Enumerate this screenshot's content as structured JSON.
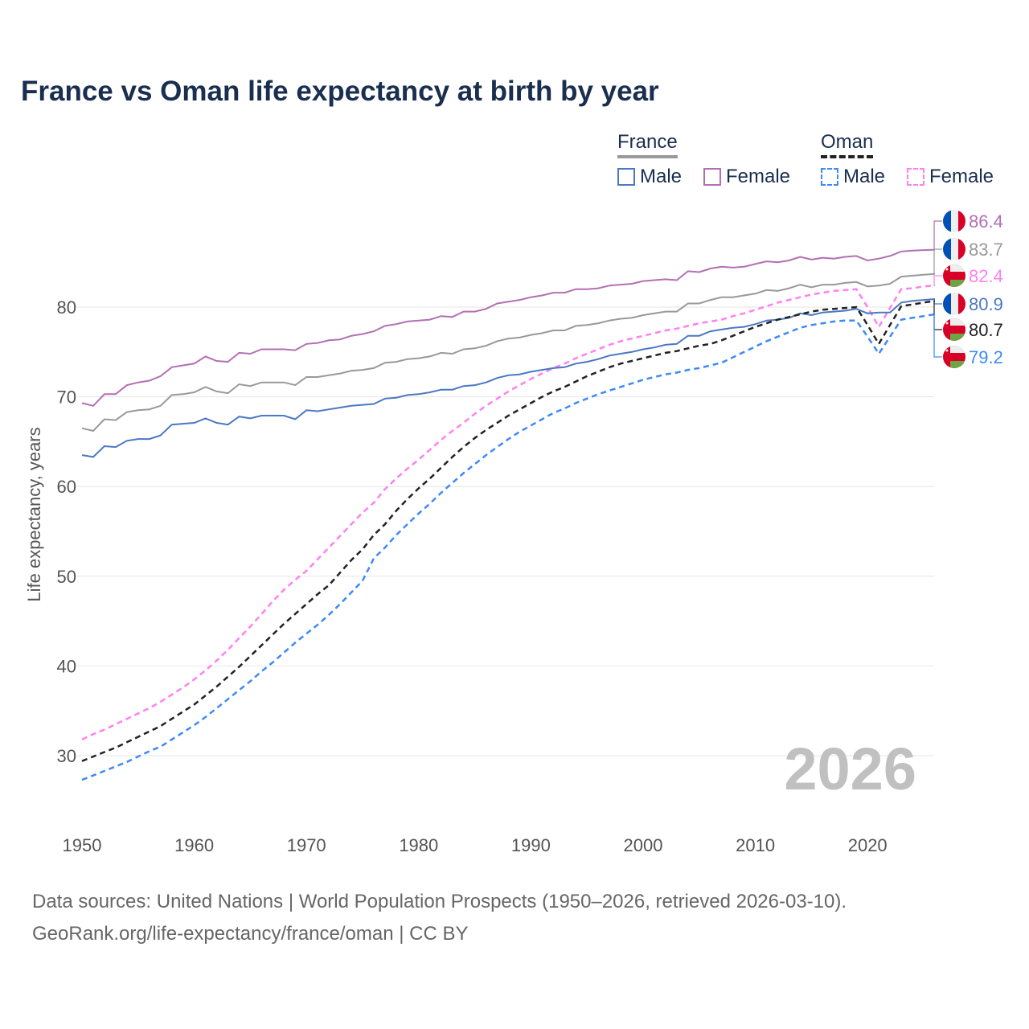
{
  "title": "France vs Oman life expectancy at birth by year",
  "footer": {
    "line1": "Data sources: United Nations | World Population Prospects (1950–2026, retrieved 2026-03-10).",
    "line2": "GeoRank.org/life-expectancy/france/oman | CC BY"
  },
  "legend": {
    "groups": [
      {
        "title": "France",
        "items": [
          "Male",
          "Female"
        ]
      },
      {
        "title": "Oman",
        "items": [
          "Male",
          "Female"
        ]
      }
    ]
  },
  "year_watermark": "2026",
  "chart_data": {
    "type": "line",
    "title": "France vs Oman life expectancy at birth by year",
    "xlabel": "",
    "ylabel": "Life expectancy, years",
    "xlim": [
      1950,
      2026
    ],
    "ylim": [
      24,
      90
    ],
    "x_ticks": [
      1950,
      1960,
      1970,
      1980,
      1990,
      2000,
      2010,
      2020
    ],
    "y_ticks": [
      30,
      40,
      50,
      60,
      70,
      80
    ],
    "grid": true,
    "x_start": 1950,
    "series": [
      {
        "name": "France Female",
        "country": "France",
        "flag": "france",
        "color": "#b36fb3",
        "dashed": false,
        "end_label": "86.4",
        "values": [
          69.3,
          69.0,
          70.3,
          70.3,
          71.3,
          71.6,
          71.8,
          72.3,
          73.3,
          73.5,
          73.7,
          74.5,
          74.0,
          73.9,
          74.9,
          74.8,
          75.3,
          75.3,
          75.3,
          75.2,
          75.9,
          76.0,
          76.3,
          76.4,
          76.8,
          77.0,
          77.3,
          77.9,
          78.1,
          78.4,
          78.5,
          78.6,
          79.0,
          78.9,
          79.5,
          79.5,
          79.8,
          80.4,
          80.6,
          80.8,
          81.1,
          81.3,
          81.6,
          81.6,
          82.0,
          82.0,
          82.1,
          82.4,
          82.5,
          82.6,
          82.9,
          83.0,
          83.1,
          83.0,
          84.0,
          83.9,
          84.3,
          84.5,
          84.4,
          84.5,
          84.8,
          85.1,
          85.0,
          85.2,
          85.6,
          85.3,
          85.5,
          85.4,
          85.6,
          85.7,
          85.2,
          85.4,
          85.7,
          86.2,
          86.3,
          86.35,
          86.4
        ]
      },
      {
        "name": "France Total",
        "country": "France",
        "flag": "france",
        "color": "#999999",
        "dashed": false,
        "end_label": "83.7",
        "values": [
          66.5,
          66.2,
          67.5,
          67.4,
          68.3,
          68.5,
          68.6,
          69.0,
          70.2,
          70.3,
          70.5,
          71.1,
          70.6,
          70.4,
          71.4,
          71.2,
          71.6,
          71.6,
          71.6,
          71.3,
          72.2,
          72.2,
          72.4,
          72.6,
          72.9,
          73.0,
          73.2,
          73.8,
          73.9,
          74.2,
          74.3,
          74.5,
          74.9,
          74.8,
          75.3,
          75.4,
          75.7,
          76.2,
          76.5,
          76.6,
          76.9,
          77.1,
          77.4,
          77.4,
          77.9,
          78.0,
          78.2,
          78.5,
          78.7,
          78.8,
          79.1,
          79.3,
          79.5,
          79.5,
          80.4,
          80.4,
          80.8,
          81.1,
          81.1,
          81.3,
          81.5,
          81.9,
          81.8,
          82.1,
          82.5,
          82.2,
          82.5,
          82.5,
          82.7,
          82.8,
          82.3,
          82.4,
          82.6,
          83.4,
          83.5,
          83.6,
          83.7
        ]
      },
      {
        "name": "Oman Female",
        "country": "Oman",
        "flag": "oman",
        "color": "#ff80f0",
        "dashed": true,
        "end_label": "82.4",
        "values": [
          31.8,
          32.4,
          32.9,
          33.5,
          34.1,
          34.7,
          35.3,
          36.0,
          36.8,
          37.6,
          38.5,
          39.5,
          40.6,
          41.8,
          43.1,
          44.4,
          45.8,
          47.2,
          48.5,
          49.6,
          50.6,
          51.9,
          53.2,
          54.5,
          55.8,
          57.1,
          58.2,
          59.7,
          60.9,
          62.0,
          63.0,
          64.1,
          65.2,
          66.2,
          67.1,
          68.1,
          69.0,
          69.8,
          70.6,
          71.3,
          72.0,
          72.6,
          73.2,
          73.7,
          74.3,
          74.8,
          75.3,
          75.8,
          76.2,
          76.5,
          76.8,
          77.1,
          77.4,
          77.6,
          77.9,
          78.2,
          78.4,
          78.6,
          79.0,
          79.3,
          79.7,
          80.1,
          80.5,
          80.8,
          81.1,
          81.4,
          81.6,
          81.8,
          81.9,
          82.0,
          80.0,
          77.8,
          79.9,
          82.0,
          82.1,
          82.3,
          82.4
        ]
      },
      {
        "name": "France Male",
        "country": "France",
        "flag": "france",
        "color": "#4a78c4",
        "dashed": false,
        "end_label": "80.9",
        "values": [
          63.5,
          63.3,
          64.5,
          64.4,
          65.1,
          65.3,
          65.3,
          65.7,
          66.9,
          67.0,
          67.1,
          67.6,
          67.1,
          66.9,
          67.8,
          67.6,
          67.9,
          67.9,
          67.9,
          67.5,
          68.5,
          68.4,
          68.6,
          68.8,
          69.0,
          69.1,
          69.2,
          69.8,
          69.9,
          70.2,
          70.3,
          70.5,
          70.8,
          70.8,
          71.2,
          71.3,
          71.6,
          72.1,
          72.4,
          72.5,
          72.8,
          73.0,
          73.2,
          73.3,
          73.7,
          73.9,
          74.2,
          74.6,
          74.8,
          75.0,
          75.3,
          75.5,
          75.8,
          75.9,
          76.8,
          76.8,
          77.3,
          77.5,
          77.7,
          77.8,
          78.1,
          78.5,
          78.6,
          78.8,
          79.3,
          79.1,
          79.4,
          79.5,
          79.6,
          79.8,
          79.3,
          79.4,
          79.4,
          80.5,
          80.7,
          80.8,
          80.9
        ]
      },
      {
        "name": "Oman Total",
        "country": "Oman",
        "flag": "oman",
        "color": "#222222",
        "dashed": true,
        "end_label": "80.7",
        "values": [
          29.4,
          29.9,
          30.4,
          30.9,
          31.5,
          32.1,
          32.7,
          33.3,
          34.1,
          34.9,
          35.7,
          36.7,
          37.7,
          38.8,
          39.9,
          41.1,
          42.3,
          43.5,
          44.7,
          45.8,
          46.9,
          48.0,
          49.0,
          50.4,
          51.8,
          53.0,
          54.6,
          55.8,
          57.3,
          58.6,
          59.8,
          60.9,
          62.1,
          63.3,
          64.4,
          65.4,
          66.3,
          67.1,
          67.9,
          68.6,
          69.3,
          70.0,
          70.6,
          71.1,
          71.7,
          72.3,
          72.8,
          73.3,
          73.7,
          74.0,
          74.3,
          74.6,
          74.9,
          75.1,
          75.4,
          75.7,
          75.9,
          76.3,
          76.8,
          77.3,
          77.8,
          78.2,
          78.6,
          78.9,
          79.2,
          79.5,
          79.7,
          79.8,
          79.9,
          80.0,
          78.0,
          75.9,
          78.0,
          80.1,
          80.3,
          80.5,
          80.7
        ]
      },
      {
        "name": "Oman Male",
        "country": "Oman",
        "flag": "oman",
        "color": "#3d8af7",
        "dashed": true,
        "end_label": "79.2",
        "values": [
          27.3,
          27.8,
          28.3,
          28.8,
          29.3,
          29.9,
          30.5,
          31.0,
          31.8,
          32.6,
          33.4,
          34.3,
          35.3,
          36.3,
          37.3,
          38.3,
          39.4,
          40.4,
          41.5,
          42.6,
          43.6,
          44.6,
          45.7,
          46.9,
          48.2,
          49.5,
          52.0,
          53.2,
          54.6,
          55.8,
          57.0,
          58.1,
          59.3,
          60.4,
          61.5,
          62.5,
          63.5,
          64.4,
          65.3,
          66.1,
          66.8,
          67.5,
          68.2,
          68.7,
          69.3,
          69.8,
          70.3,
          70.7,
          71.1,
          71.5,
          71.9,
          72.2,
          72.5,
          72.7,
          73.0,
          73.2,
          73.5,
          73.8,
          74.4,
          75.0,
          75.6,
          76.2,
          76.7,
          77.2,
          77.7,
          78.0,
          78.2,
          78.4,
          78.5,
          78.5,
          76.7,
          74.8,
          76.7,
          78.6,
          78.8,
          79.0,
          79.2
        ]
      }
    ]
  }
}
